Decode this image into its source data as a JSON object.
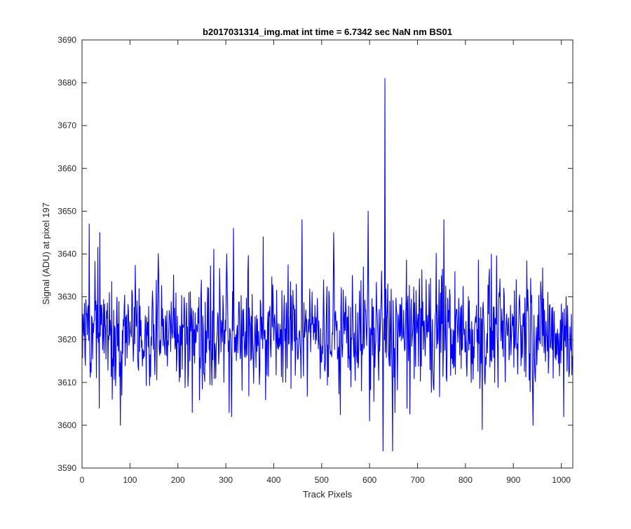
{
  "chart_data": {
    "type": "line",
    "title": "b2017031314_img.mat int time = 6.7342 sec  NaN nm BS01",
    "xlabel": "Track Pixels",
    "ylabel": "Signal (ADU) at pixel 197",
    "xlim": [
      0,
      1024
    ],
    "ylim": [
      3590,
      3690
    ],
    "xticks": [
      0,
      100,
      200,
      300,
      400,
      500,
      600,
      700,
      800,
      900,
      1000
    ],
    "yticks": [
      3590,
      3600,
      3610,
      3620,
      3630,
      3640,
      3650,
      3660,
      3670,
      3680,
      3690
    ],
    "grid": false,
    "line_color": "#0000ff",
    "series": [
      {
        "n_points": 1024,
        "baseline": 3622,
        "typical_range": [
          3610,
          3635
        ],
        "notable_points": [
          {
            "x": 15,
            "y": 3647
          },
          {
            "x": 36,
            "y": 3604
          },
          {
            "x": 37,
            "y": 3645
          },
          {
            "x": 80,
            "y": 3600
          },
          {
            "x": 307,
            "y": 3603
          },
          {
            "x": 312,
            "y": 3602
          },
          {
            "x": 316,
            "y": 3646
          },
          {
            "x": 378,
            "y": 3644
          },
          {
            "x": 459,
            "y": 3648
          },
          {
            "x": 525,
            "y": 3645
          },
          {
            "x": 597,
            "y": 3650
          },
          {
            "x": 600,
            "y": 3601
          },
          {
            "x": 628,
            "y": 3594
          },
          {
            "x": 632,
            "y": 3681
          },
          {
            "x": 648,
            "y": 3594
          },
          {
            "x": 653,
            "y": 3603
          },
          {
            "x": 755,
            "y": 3648
          },
          {
            "x": 835,
            "y": 3599
          },
          {
            "x": 941,
            "y": 3600
          },
          {
            "x": 1005,
            "y": 3602
          }
        ]
      }
    ]
  }
}
